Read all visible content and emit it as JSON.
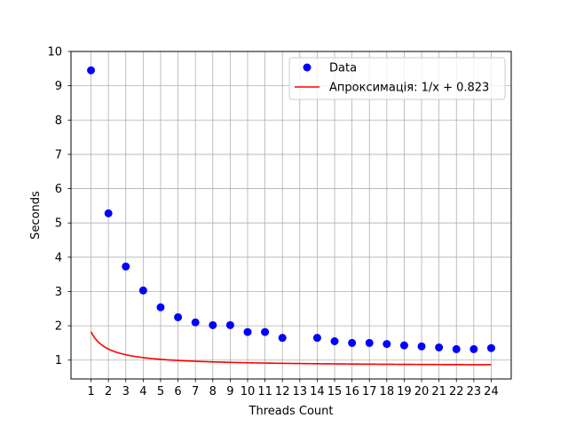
{
  "chart_data": {
    "type": "scatter",
    "xlabel": "Threads Count",
    "ylabel": "Seconds",
    "xlim": [
      -0.15,
      25.15
    ],
    "ylim": [
      0.45,
      10
    ],
    "xticks": [
      1,
      2,
      3,
      4,
      5,
      6,
      7,
      8,
      9,
      10,
      11,
      12,
      13,
      14,
      15,
      16,
      17,
      18,
      19,
      20,
      21,
      22,
      23,
      24
    ],
    "yticks": [
      1,
      2,
      3,
      4,
      5,
      6,
      7,
      8,
      9,
      10
    ],
    "grid": true,
    "legend_position": "top-right",
    "series": [
      {
        "name": "Data",
        "kind": "scatter",
        "color": "#0000ff",
        "x": [
          1,
          2,
          3,
          4,
          5,
          6,
          7,
          8,
          9,
          10,
          11,
          12,
          14,
          15,
          16,
          17,
          18,
          19,
          20,
          21,
          22,
          23,
          24
        ],
        "y": [
          9.45,
          5.28,
          3.73,
          3.03,
          2.54,
          2.25,
          2.1,
          2.02,
          2.02,
          1.82,
          1.82,
          1.65,
          1.65,
          1.55,
          1.5,
          1.5,
          1.47,
          1.43,
          1.4,
          1.37,
          1.32,
          1.32,
          1.35
        ]
      },
      {
        "name": "Апроксимація: 1/x + 0.823",
        "kind": "line",
        "color": "#ff0000",
        "function": {
          "form": "1/x + c",
          "c": 0.823,
          "x_range": [
            1,
            24
          ]
        }
      }
    ]
  }
}
